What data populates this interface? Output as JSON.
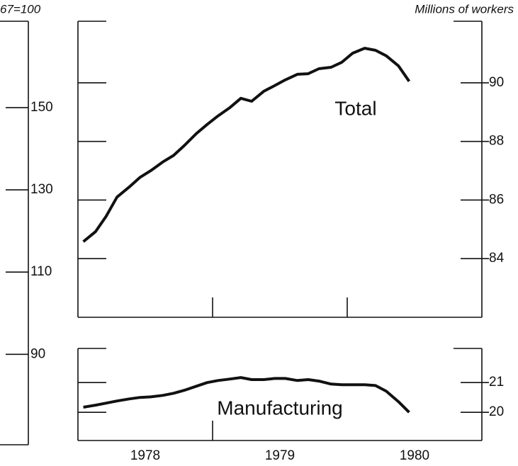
{
  "left_axis": {
    "label": "67=100",
    "ylim": [
      68,
      171
    ],
    "yticks": [
      90,
      110,
      130,
      150
    ]
  },
  "year_labels": [
    "1978",
    "1979",
    "1980"
  ],
  "chart_data": [
    {
      "type": "line",
      "annotation": "Total",
      "ylabel": "Millions of workers",
      "x": [
        1978.04,
        1978.13,
        1978.21,
        1978.29,
        1978.38,
        1978.46,
        1978.54,
        1978.63,
        1978.71,
        1978.79,
        1978.88,
        1978.96,
        1979.04,
        1979.13,
        1979.21,
        1979.29,
        1979.38,
        1979.46,
        1979.54,
        1979.63,
        1979.71,
        1979.79,
        1979.88,
        1979.96,
        1980.04,
        1980.13,
        1980.21,
        1980.29,
        1980.38,
        1980.46
      ],
      "series": [
        {
          "name": "Total",
          "color": "#111111",
          "values": [
            84.58,
            84.92,
            85.45,
            86.1,
            86.44,
            86.77,
            87.0,
            87.3,
            87.52,
            87.86,
            88.27,
            88.58,
            88.87,
            89.16,
            89.47,
            89.37,
            89.71,
            89.9,
            90.1,
            90.29,
            90.31,
            90.48,
            90.53,
            90.7,
            91.01,
            91.18,
            91.11,
            90.92,
            90.58,
            90.05
          ]
        }
      ],
      "xlim": [
        1978,
        1981
      ],
      "xticks": [
        1979,
        1980
      ],
      "ylim": [
        82,
        92.1
      ],
      "yticks": [
        84,
        86,
        88,
        90
      ]
    },
    {
      "type": "line",
      "annotation": "Manufacturing",
      "x": [
        1978.04,
        1978.13,
        1978.21,
        1978.29,
        1978.38,
        1978.46,
        1978.54,
        1978.63,
        1978.71,
        1978.79,
        1978.88,
        1978.96,
        1979.04,
        1979.13,
        1979.21,
        1979.29,
        1979.38,
        1979.46,
        1979.54,
        1979.63,
        1979.71,
        1979.79,
        1979.88,
        1979.96,
        1980.04,
        1980.13,
        1980.21,
        1980.29,
        1980.38,
        1980.46
      ],
      "series": [
        {
          "name": "Manufacturing",
          "color": "#111111",
          "values": [
            20.17,
            20.24,
            20.31,
            20.38,
            20.45,
            20.5,
            20.52,
            20.57,
            20.64,
            20.74,
            20.88,
            21.0,
            21.07,
            21.12,
            21.17,
            21.1,
            21.1,
            21.14,
            21.14,
            21.07,
            21.1,
            21.05,
            20.95,
            20.93,
            20.93,
            20.93,
            20.9,
            20.71,
            20.36,
            20.0
          ]
        }
      ],
      "xlim": [
        1978,
        1981
      ],
      "xticks": [
        1979
      ],
      "ylim": [
        19.05,
        22.15
      ],
      "yticks": [
        20,
        21
      ]
    }
  ]
}
